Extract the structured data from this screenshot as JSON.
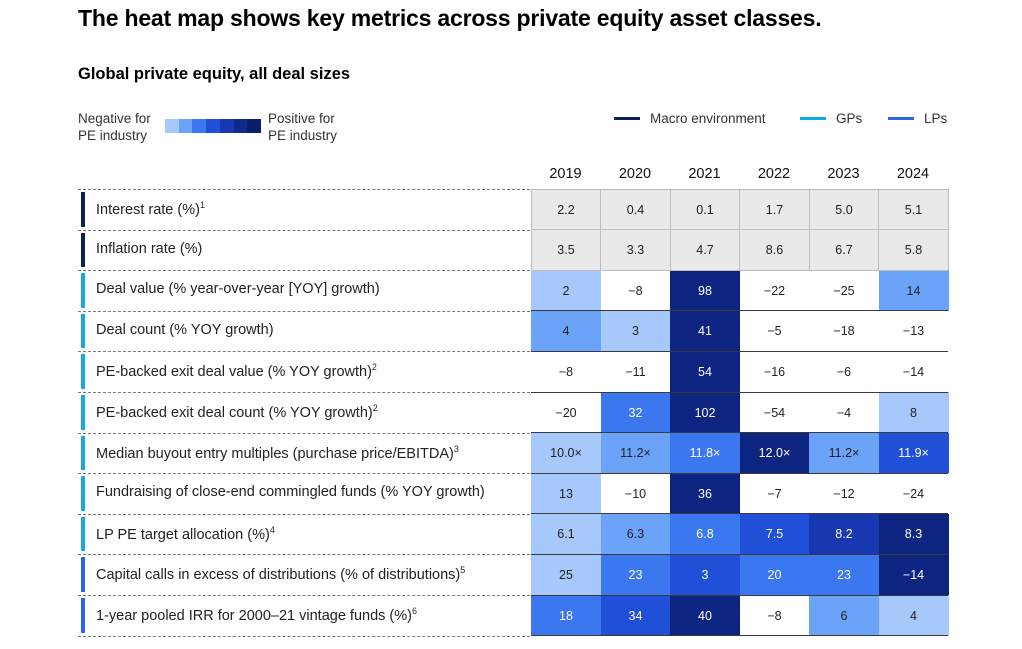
{
  "title": "The heat map shows key metrics across private equity asset classes.",
  "subtitle": "Global private equity, all deal sizes",
  "scale": {
    "negative_label_1": "Negative for",
    "negative_label_2": "PE industry",
    "positive_label_1": "Positive for",
    "positive_label_2": "PE industry",
    "colors": [
      "#a6c8fa",
      "#6aa3f7",
      "#3b78f0",
      "#2050d8",
      "#1738b0",
      "#0f2a88",
      "#0a1f6a"
    ]
  },
  "legend": [
    {
      "name": "Macro environment",
      "color": "#0b1f5c"
    },
    {
      "name": "GPs",
      "color": "#17a7e8"
    },
    {
      "name": "LPs",
      "color": "#2f63e8"
    }
  ],
  "chart_data": {
    "type": "heatmap",
    "columns": [
      "2019",
      "2020",
      "2021",
      "2022",
      "2023",
      "2024"
    ],
    "rows": [
      {
        "label": "Interest rate (%)",
        "note": "1",
        "group": "Macro environment",
        "values": [
          "2.2",
          "0.4",
          "0.1",
          "1.7",
          "5.0",
          "5.1"
        ],
        "shades": [
          0,
          0,
          0,
          0,
          0,
          0
        ]
      },
      {
        "label": "Inflation rate (%)",
        "note": "",
        "group": "Macro environment",
        "values": [
          "3.5",
          "3.3",
          "4.7",
          "8.6",
          "6.7",
          "5.8"
        ],
        "shades": [
          0,
          0,
          0,
          0,
          0,
          0
        ]
      },
      {
        "label": "Deal value (% year-over-year [YOY] growth)",
        "note": "",
        "group": "GPs",
        "values": [
          "2",
          "−8",
          "98",
          "−22",
          "−25",
          "14"
        ],
        "shades": [
          2,
          1,
          7,
          1,
          1,
          3
        ]
      },
      {
        "label": "Deal count (% YOY growth)",
        "note": "",
        "group": "GPs",
        "values": [
          "4",
          "3",
          "41",
          "−5",
          "−18",
          "−13"
        ],
        "shades": [
          3,
          2,
          7,
          1,
          1,
          1
        ]
      },
      {
        "label": "PE-backed exit deal value (% YOY growth)",
        "note": "2",
        "group": "GPs",
        "values": [
          "−8",
          "−11",
          "54",
          "−16",
          "−6",
          "−14"
        ],
        "shades": [
          1,
          1,
          7,
          1,
          1,
          1
        ]
      },
      {
        "label": "PE-backed exit deal count (% YOY growth)",
        "note": "2",
        "group": "GPs",
        "values": [
          "−20",
          "32",
          "102",
          "−54",
          "−4",
          "8"
        ],
        "shades": [
          1,
          4,
          7,
          1,
          1,
          2
        ]
      },
      {
        "label": "Median buyout entry multiples (purchase price/EBITDA)",
        "note": "3",
        "group": "GPs",
        "values": [
          "10.0×",
          "11.2×",
          "11.8×",
          "12.0×",
          "11.2×",
          "11.9×"
        ],
        "shades": [
          2,
          3,
          4,
          7,
          3,
          5
        ]
      },
      {
        "label": "Fundraising of close-end commingled funds (% YOY growth)",
        "note": "",
        "group": "GPs",
        "values": [
          "13",
          "−10",
          "36",
          "−7",
          "−12",
          "−24"
        ],
        "shades": [
          2,
          1,
          7,
          1,
          1,
          1
        ]
      },
      {
        "label": "LP PE target allocation (%)",
        "note": "4",
        "group": "GPs",
        "values": [
          "6.1",
          "6.3",
          "6.8",
          "7.5",
          "8.2",
          "8.3"
        ],
        "shades": [
          2,
          3,
          4,
          5,
          6,
          7
        ]
      },
      {
        "label": "Capital calls in excess of distributions (% of distributions)",
        "note": "5",
        "group": "LPs",
        "values": [
          "25",
          "23",
          "3",
          "20",
          "23",
          "−14"
        ],
        "shades": [
          2,
          4,
          5,
          4,
          4,
          7
        ]
      },
      {
        "label": "1-year pooled IRR for 2000–21 vintage funds (%)",
        "note": "6",
        "group": "LPs",
        "values": [
          "18",
          "34",
          "40",
          "−8",
          "6",
          "4"
        ],
        "shades": [
          4,
          5,
          7,
          1,
          3,
          2
        ]
      }
    ]
  },
  "palette": {
    "neutral": "#e9e9e9",
    "white": "#ffffff",
    "shades": [
      "#e9e9e9",
      "#ffffff",
      "#a6c8fa",
      "#6aa3f7",
      "#3b78f0",
      "#2050d8",
      "#1738b0",
      "#0d2580"
    ]
  }
}
